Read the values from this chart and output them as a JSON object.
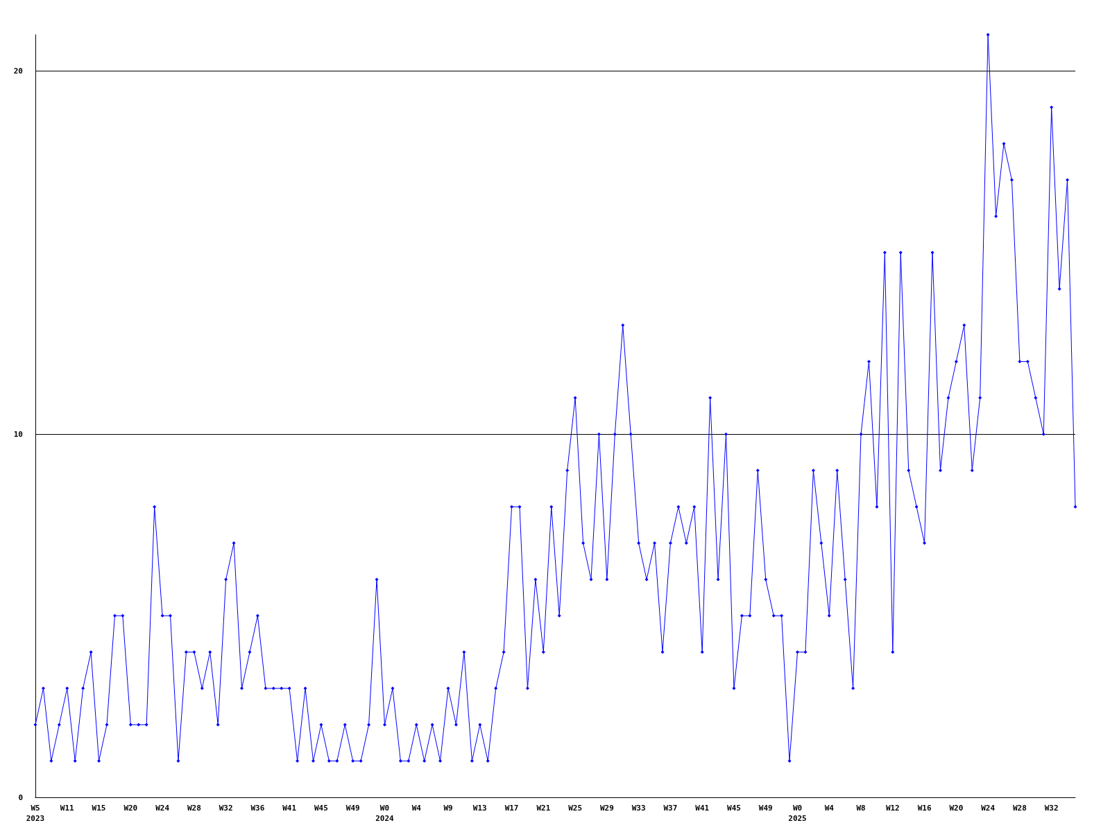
{
  "chart_data": {
    "type": "line",
    "categories": [
      "W5\n2023",
      null,
      null,
      null,
      "W11",
      null,
      null,
      null,
      "W15",
      null,
      null,
      null,
      "W20",
      null,
      null,
      null,
      "W24",
      null,
      null,
      null,
      "W28",
      null,
      null,
      null,
      "W32",
      null,
      null,
      null,
      "W36",
      null,
      null,
      null,
      "W41",
      null,
      null,
      null,
      "W45",
      null,
      null,
      null,
      "W49",
      null,
      null,
      null,
      "W0\n2024",
      null,
      null,
      null,
      "W4",
      null,
      null,
      null,
      "W9",
      null,
      null,
      null,
      "W13",
      null,
      null,
      null,
      "W17",
      null,
      null,
      null,
      "W21",
      null,
      null,
      null,
      "W25",
      null,
      null,
      null,
      "W29",
      null,
      null,
      null,
      "W33",
      null,
      null,
      null,
      "W37",
      null,
      null,
      null,
      "W41",
      null,
      null,
      null,
      "W45",
      null,
      null,
      null,
      "W49",
      null,
      null,
      null,
      "W0\n2025",
      null,
      null,
      null,
      "W4",
      null,
      null,
      null,
      "W8",
      null,
      null,
      null,
      "W12",
      null,
      null,
      null,
      "W16",
      null,
      null,
      null,
      "W20",
      null,
      null,
      null,
      "W24",
      null,
      null,
      null,
      "W28",
      null,
      null,
      null,
      "W32",
      null,
      null,
      null
    ],
    "series": [
      {
        "color": "#0000ff",
        "values": [
          2,
          3,
          1,
          2,
          3,
          1,
          3,
          4,
          1,
          2,
          5,
          5,
          2,
          2,
          2,
          8,
          5,
          5,
          1,
          4,
          4,
          3,
          4,
          2,
          6,
          7,
          3,
          4,
          5,
          3,
          3,
          3,
          3,
          1,
          3,
          1,
          2,
          1,
          1,
          2,
          1,
          1,
          2,
          6,
          2,
          3,
          1,
          1,
          2,
          1,
          2,
          1,
          3,
          2,
          4,
          1,
          2,
          1,
          3,
          4,
          8,
          8,
          3,
          6,
          4,
          8,
          5,
          9,
          11,
          7,
          6,
          10,
          6,
          10,
          13,
          10,
          7,
          6,
          7,
          4,
          7,
          8,
          7,
          8,
          4,
          11,
          6,
          10,
          3,
          5,
          5,
          9,
          6,
          5,
          5,
          1,
          4,
          4,
          9,
          7,
          5,
          9,
          6,
          3,
          10,
          12,
          8,
          15,
          4,
          15,
          9,
          8,
          7,
          15,
          9,
          11,
          12,
          13,
          9,
          11,
          21,
          16,
          18,
          17,
          12,
          12,
          11,
          10,
          19,
          14,
          17,
          8
        ]
      }
    ],
    "ylim": [
      0,
      21
    ],
    "yticks": [
      0,
      10,
      20
    ],
    "grid": "y",
    "marker": "diamond",
    "line_style": "solid"
  }
}
